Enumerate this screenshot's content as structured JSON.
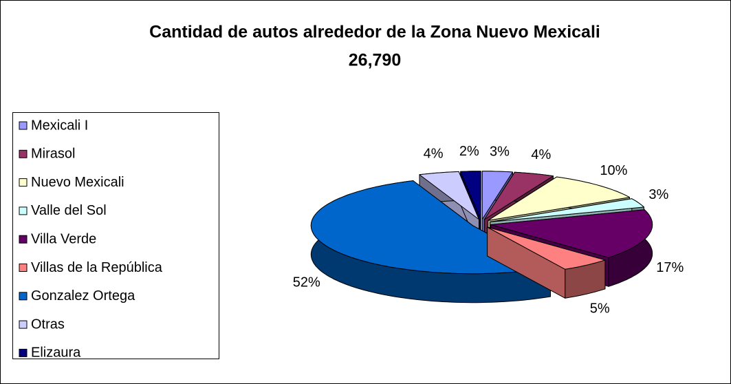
{
  "chart_data": {
    "type": "pie",
    "title": "Cantidad de autos alrededor de la Zona Nuevo Mexicali",
    "subtitle": "26,790",
    "categories": [
      "Mexicali I",
      "Mirasol",
      "Nuevo Mexicali",
      "Valle del Sol",
      "Villa Verde",
      "Villas de la República",
      "Gonzalez Ortega",
      "Otras",
      "Elizaura"
    ],
    "values": [
      3,
      4,
      10,
      3,
      17,
      5,
      52,
      4,
      2
    ],
    "value_labels": [
      "3%",
      "4%",
      "10%",
      "3%",
      "17%",
      "5%",
      "52%",
      "4%",
      "2%"
    ],
    "colors": [
      "#9999ff",
      "#993366",
      "#ffffcc",
      "#ccffff",
      "#660066",
      "#ff8080",
      "#0066cc",
      "#ccccff",
      "#000080"
    ],
    "legend": "left",
    "three_d": true,
    "exploded": true
  }
}
